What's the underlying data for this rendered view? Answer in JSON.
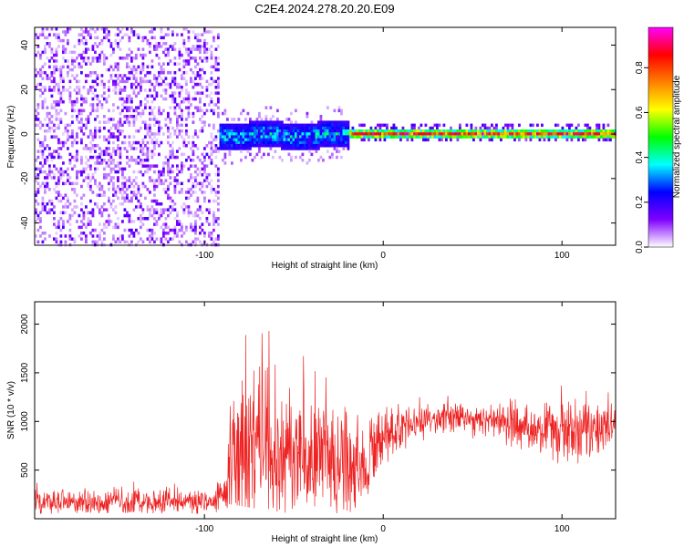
{
  "figure": {
    "title": "C2E4.2024.278.20.20.E09"
  },
  "chart_data": [
    {
      "type": "heatmap",
      "title": "C2E4.2024.278.20.20.E09",
      "xlabel": "Height of straight line (km)",
      "ylabel": "Frequency (Hz)",
      "xlim": [
        -195,
        130
      ],
      "ylim": [
        -50,
        48
      ],
      "xticks": [
        -100,
        0,
        100
      ],
      "yticks": [
        -40,
        -20,
        0,
        20,
        40
      ],
      "colorbar": {
        "label": "Normalized spectral amplitude",
        "range": [
          0,
          0.98
        ],
        "ticks": [
          "0.0",
          "0.2",
          "0.4",
          "0.6",
          "0.8"
        ],
        "colors": [
          "#ffffff",
          "#8000ff",
          "#0000ff",
          "#00ffff",
          "#00ff00",
          "#ffff00",
          "#ff8000",
          "#ff0000",
          "#ff00ff"
        ]
      },
      "regions": [
        {
          "x_range": [
            -195,
            -92
          ],
          "freq_range": [
            -50,
            48
          ],
          "amplitude": "0.0-0.2",
          "pattern": "broadband noise"
        },
        {
          "x_range": [
            -92,
            -20
          ],
          "freq_center": 0,
          "freq_halfwidth": 6,
          "amplitude": "0.2-0.5",
          "pattern": "signal band"
        },
        {
          "x_range": [
            -20,
            130
          ],
          "freq_center": 1,
          "freq_halfwidth": 2,
          "amplitude": "0.6-0.9",
          "pattern": "narrow tone"
        }
      ],
      "grid": false
    },
    {
      "type": "line",
      "xlabel": "Height of straight line (km)",
      "ylabel": "SNR (10 * v/v)",
      "xlim": [
        -195,
        130
      ],
      "ylim": [
        0,
        2230
      ],
      "xticks": [
        -100,
        0,
        100
      ],
      "yticks": [
        500,
        1000,
        1500,
        2000
      ],
      "color": "#ee2222",
      "envelope": [
        {
          "x": -195,
          "low": 50,
          "mid": 180,
          "high": 450
        },
        {
          "x": -150,
          "low": 60,
          "mid": 170,
          "high": 400
        },
        {
          "x": -100,
          "low": 50,
          "mid": 180,
          "high": 400
        },
        {
          "x": -88,
          "low": 80,
          "mid": 250,
          "high": 480
        },
        {
          "x": -86,
          "low": 150,
          "mid": 600,
          "high": 1750
        },
        {
          "x": -70,
          "low": 100,
          "mid": 700,
          "high": 2230
        },
        {
          "x": -50,
          "low": 50,
          "mid": 650,
          "high": 1700
        },
        {
          "x": -30,
          "low": 50,
          "mid": 600,
          "high": 1650
        },
        {
          "x": -12,
          "low": 80,
          "mid": 500,
          "high": 1600
        },
        {
          "x": 0,
          "low": 550,
          "mid": 850,
          "high": 1200
        },
        {
          "x": 20,
          "low": 800,
          "mid": 1000,
          "high": 1250
        },
        {
          "x": 40,
          "low": 850,
          "mid": 1050,
          "high": 1300
        },
        {
          "x": 60,
          "low": 800,
          "mid": 1000,
          "high": 1300
        },
        {
          "x": 80,
          "low": 700,
          "mid": 950,
          "high": 1350
        },
        {
          "x": 100,
          "low": 500,
          "mid": 900,
          "high": 1500
        },
        {
          "x": 115,
          "low": 600,
          "mid": 950,
          "high": 1450
        },
        {
          "x": 130,
          "low": 600,
          "mid": 950,
          "high": 1300
        }
      ],
      "grid": false
    }
  ]
}
